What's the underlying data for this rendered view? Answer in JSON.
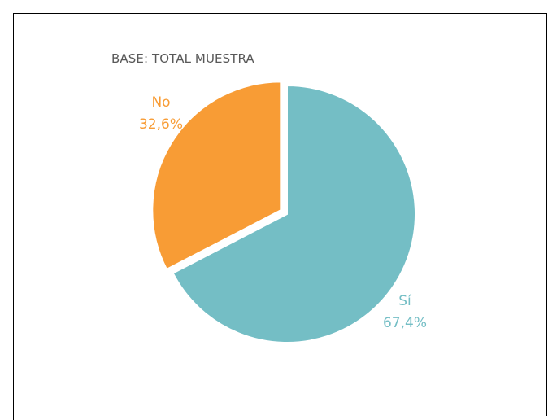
{
  "subtitle": "BASE: TOTAL MUESTRA",
  "colors": {
    "si": "#74bec5",
    "no": "#f89c35"
  },
  "chart_data": {
    "type": "pie",
    "title": "",
    "subtitle": "BASE: TOTAL MUESTRA",
    "slices": [
      {
        "label": "Sí",
        "value": 67.4,
        "value_label": "67,4%",
        "color": "#74bec5",
        "exploded": false
      },
      {
        "label": "No",
        "value": 32.6,
        "value_label": "32,6%",
        "color": "#f89c35",
        "exploded": true
      }
    ]
  }
}
